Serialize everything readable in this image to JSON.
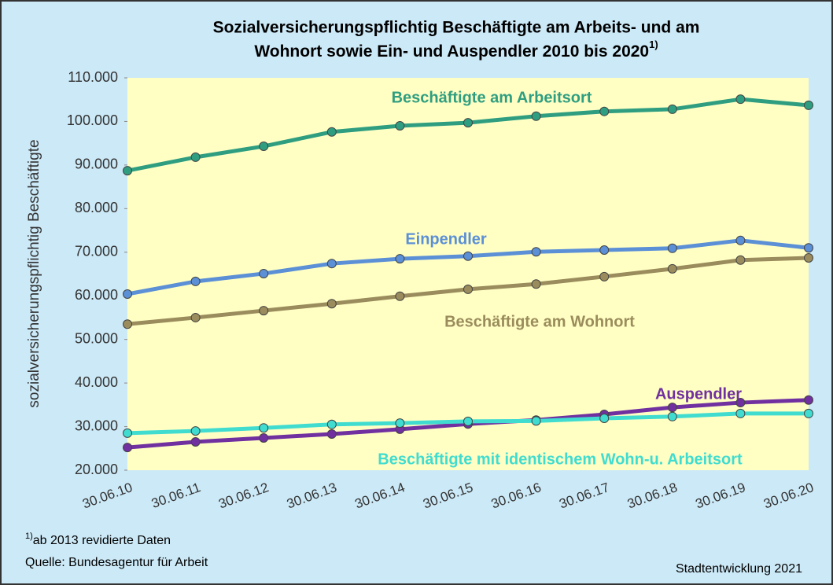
{
  "chart_data": {
    "type": "line",
    "title": [
      "Sozialversicherungspflichtig Beschäftigte am Arbeits- und am",
      "Wohnort sowie Ein- und Auspendler 2010 bis 2020"
    ],
    "title_note": "1)",
    "y_label": "sozialversicherungspflichtig Beschäftigte",
    "categories": [
      "30.06.10",
      "30.06.11",
      "30.06.12",
      "30.06.13",
      "30.06.14",
      "30.06.15",
      "30.06.16",
      "30.06.17",
      "30.06.18",
      "30.06.19",
      "30.06.20"
    ],
    "series": [
      {
        "name": "Beschäftigte am Arbeitsort",
        "color": "#2f9e80",
        "values": [
          88700,
          91800,
          94300,
          97600,
          99000,
          99700,
          101200,
          102300,
          102800,
          105100,
          103700
        ]
      },
      {
        "name": "Einpendler",
        "color": "#5b8fd6",
        "values": [
          60400,
          63300,
          65100,
          67400,
          68500,
          69100,
          70100,
          70500,
          70900,
          72700,
          71000
        ]
      },
      {
        "name": "Beschäftigte am Wohnort",
        "color": "#9a8c5c",
        "values": [
          53500,
          55000,
          56600,
          58200,
          59900,
          61500,
          62700,
          64400,
          66200,
          68200,
          68700
        ]
      },
      {
        "name": "Auspendler",
        "color": "#7030a0",
        "values": [
          25200,
          26500,
          27400,
          28300,
          29400,
          30600,
          31500,
          32800,
          34400,
          35500,
          36100
        ]
      },
      {
        "name": "Beschäftigte mit identischem Wohn-u. Arbeitsort",
        "color": "#40dcd0",
        "values": [
          28500,
          29000,
          29700,
          30500,
          30800,
          31200,
          31300,
          31900,
          32300,
          33000,
          33000
        ]
      }
    ],
    "ylim": [
      20000,
      110000
    ],
    "yticks": [
      {
        "value": 20000,
        "label": "20.000"
      },
      {
        "value": 30000,
        "label": "30.000"
      },
      {
        "value": 40000,
        "label": "40.000"
      },
      {
        "value": 50000,
        "label": "50.000"
      },
      {
        "value": 60000,
        "label": "60.000"
      },
      {
        "value": 70000,
        "label": "70.000"
      },
      {
        "value": 80000,
        "label": "80.000"
      },
      {
        "value": 90000,
        "label": "90.000"
      },
      {
        "value": 100000,
        "label": "100.000"
      },
      {
        "value": 110000,
        "label": "110.000"
      }
    ],
    "footnote_mark": "1)",
    "footnote": "ab 2013 revidierte Daten",
    "source": "Quelle: Bundesagentur für Arbeit",
    "credit": "Stadtentwicklung 2021"
  }
}
